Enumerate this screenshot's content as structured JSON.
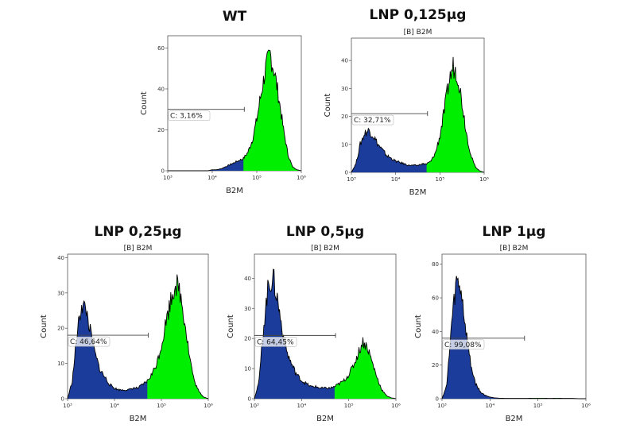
{
  "chart_data": [
    {
      "type": "area",
      "title": "WT",
      "subtitle": "",
      "xlabel": "B2M",
      "ylabel": "Count",
      "xscale": "log",
      "xlim": [
        1000,
        1000000
      ],
      "xticks": [
        "10³",
        "10⁴",
        "10⁵",
        "10⁶"
      ],
      "ylim": [
        0,
        66
      ],
      "yticks": [
        0,
        20,
        40,
        60
      ],
      "x_log10": [
        3.0,
        3.1,
        3.2,
        3.3,
        3.4,
        3.5,
        3.6,
        3.7,
        3.8,
        3.9,
        4.0,
        4.1,
        4.2,
        4.3,
        4.4,
        4.5,
        4.6,
        4.7,
        4.8,
        4.9,
        5.0,
        5.1,
        5.2,
        5.3,
        5.4,
        5.5,
        5.6,
        5.7,
        5.8,
        5.9,
        6.0
      ],
      "counts": [
        0,
        0,
        0,
        0,
        0,
        0,
        0,
        0,
        0,
        0,
        0.5,
        0.5,
        1,
        2,
        3,
        4,
        5,
        6,
        9,
        15,
        25,
        38,
        50,
        57,
        48,
        35,
        20,
        8,
        2,
        0.5,
        0
      ],
      "gate": {
        "label": "C: 3,16%",
        "end_log10": 4.72,
        "level": 30
      },
      "colors": {
        "below_gate": "#1c3c9c",
        "above_gate": "#00ee00",
        "outline": "#000000"
      }
    },
    {
      "type": "area",
      "title": "LNP 0,125µg",
      "subtitle": "[B] B2M",
      "xlabel": "B2M",
      "ylabel": "Count",
      "xscale": "log",
      "xlim": [
        1000,
        1000000
      ],
      "xticks": [
        "10³",
        "10⁴",
        "10⁵",
        "10⁶"
      ],
      "ylim": [
        0,
        48
      ],
      "yticks": [
        0,
        10,
        20,
        30,
        40
      ],
      "x_log10": [
        3.0,
        3.1,
        3.2,
        3.3,
        3.4,
        3.5,
        3.6,
        3.7,
        3.8,
        3.9,
        4.0,
        4.1,
        4.2,
        4.3,
        4.4,
        4.5,
        4.6,
        4.7,
        4.8,
        4.9,
        5.0,
        5.1,
        5.2,
        5.3,
        5.4,
        5.5,
        5.6,
        5.7,
        5.8,
        5.9,
        6.0
      ],
      "counts": [
        0,
        3,
        10,
        14,
        15,
        13,
        10,
        8,
        6,
        5,
        4,
        3.5,
        3,
        2.5,
        2.5,
        2.5,
        3,
        3,
        4,
        7,
        13,
        22,
        32,
        38,
        35,
        25,
        14,
        6,
        2,
        0.5,
        0
      ],
      "gate": {
        "label": "C: 32,71%",
        "end_log10": 4.72,
        "level": 21
      },
      "colors": {
        "below_gate": "#1c3c9c",
        "above_gate": "#00ee00",
        "outline": "#000000"
      }
    },
    {
      "type": "area",
      "title": "LNP 0,25µg",
      "subtitle": "[B] B2M",
      "xlabel": "B2M",
      "ylabel": "Count",
      "xscale": "log",
      "xlim": [
        1000,
        1000000
      ],
      "xticks": [
        "10³",
        "10⁴",
        "10⁵",
        "10⁶"
      ],
      "ylim": [
        0,
        41
      ],
      "yticks": [
        0,
        10,
        20,
        30,
        40
      ],
      "x_log10": [
        3.0,
        3.1,
        3.2,
        3.3,
        3.4,
        3.5,
        3.6,
        3.7,
        3.8,
        3.9,
        4.0,
        4.1,
        4.2,
        4.3,
        4.4,
        4.5,
        4.6,
        4.7,
        4.8,
        4.9,
        5.0,
        5.1,
        5.2,
        5.3,
        5.4,
        5.5,
        5.6,
        5.7,
        5.8,
        5.9,
        6.0
      ],
      "counts": [
        0,
        5,
        18,
        27,
        25,
        18,
        12,
        8,
        6,
        4,
        3,
        2.5,
        2.5,
        2.5,
        3,
        3,
        4,
        5,
        7,
        10,
        15,
        22,
        28,
        33,
        30,
        22,
        12,
        5,
        2,
        0.5,
        0
      ],
      "gate": {
        "label": "C: 46,64%",
        "end_log10": 4.72,
        "level": 18
      },
      "colors": {
        "below_gate": "#1c3c9c",
        "above_gate": "#00ee00",
        "outline": "#000000"
      }
    },
    {
      "type": "area",
      "title": "LNP 0,5µg",
      "subtitle": "[B] B2M",
      "xlabel": "B2M",
      "ylabel": "Count",
      "xscale": "log",
      "xlim": [
        1000,
        1000000
      ],
      "xticks": [
        "10³",
        "10⁴",
        "10⁵",
        "10⁶"
      ],
      "ylim": [
        0,
        48
      ],
      "yticks": [
        0,
        10,
        20,
        30,
        40
      ],
      "x_log10": [
        3.0,
        3.1,
        3.2,
        3.3,
        3.4,
        3.5,
        3.6,
        3.7,
        3.8,
        3.9,
        4.0,
        4.1,
        4.2,
        4.3,
        4.4,
        4.5,
        4.6,
        4.7,
        4.8,
        4.9,
        5.0,
        5.1,
        5.2,
        5.3,
        5.4,
        5.5,
        5.6,
        5.7,
        5.8,
        5.9,
        6.0
      ],
      "counts": [
        0,
        6,
        25,
        38,
        40,
        32,
        22,
        15,
        11,
        8,
        6,
        5,
        4,
        4,
        3.5,
        3.5,
        3.5,
        4,
        5,
        6,
        8,
        11,
        15,
        19,
        17,
        12,
        7,
        3,
        1,
        0.3,
        0
      ],
      "gate": {
        "label": "C: 64,45%",
        "end_log10": 4.72,
        "level": 21
      },
      "colors": {
        "below_gate": "#1c3c9c",
        "above_gate": "#00ee00",
        "outline": "#000000"
      }
    },
    {
      "type": "area",
      "title": "LNP 1µg",
      "subtitle": "[B] B2M",
      "xlabel": "B2M",
      "ylabel": "Count",
      "xscale": "log",
      "xlim": [
        1000,
        1000000
      ],
      "xticks": [
        "10³",
        "10⁴",
        "10⁵",
        "10⁶"
      ],
      "ylim": [
        0,
        86
      ],
      "yticks": [
        0,
        20,
        40,
        60,
        80
      ],
      "x_log10": [
        3.0,
        3.1,
        3.2,
        3.3,
        3.4,
        3.5,
        3.6,
        3.7,
        3.8,
        3.9,
        4.0,
        4.1,
        4.2,
        4.3,
        4.4,
        4.5,
        4.6,
        4.7,
        4.8,
        4.9,
        5.0,
        5.1,
        5.2,
        5.3,
        5.4,
        5.5,
        5.6,
        5.7,
        5.8,
        5.9,
        6.0
      ],
      "counts": [
        0,
        8,
        45,
        70,
        65,
        40,
        20,
        9,
        4,
        2,
        1,
        0.5,
        0.3,
        0.2,
        0.2,
        0.2,
        0.2,
        0.2,
        0.2,
        0.3,
        0.3,
        0.3,
        0.2,
        0.2,
        0.3,
        0.2,
        0.2,
        0.2,
        0.1,
        0,
        0
      ],
      "gate": {
        "label": "C: 99,08%",
        "end_log10": 4.72,
        "level": 36
      },
      "colors": {
        "below_gate": "#1c3c9c",
        "above_gate": "#00ee00",
        "outline": "#000000"
      }
    }
  ]
}
